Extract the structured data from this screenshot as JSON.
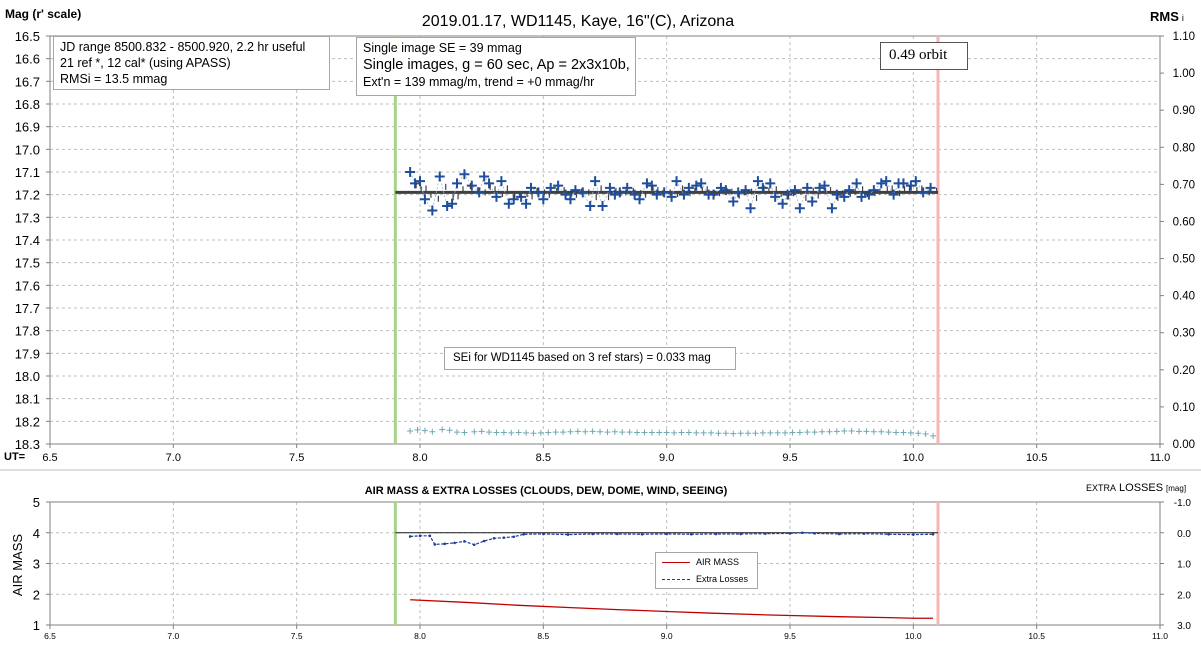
{
  "title": "2019.01.17, WD1145, Kaye, 16\"(C), Arizona",
  "annotations": {
    "jd_box": [
      "JD range 8500.832 - 8500.920, 2.2 hr useful",
      "21 ref *, 12 cal* (using APASS)",
      "RMSi = 13.5 mmag"
    ],
    "se_box": [
      "Single image SE = 39 mmag",
      "Single images, g = 60 sec, Ap = 2x3x10b,",
      "Ext'n = 139 mmag/m, trend = +0 mmag/hr"
    ],
    "orbit": "0.49 orbit",
    "sei": "SEi for WD1145 based on 3 ref stars) = 0.033 mag"
  },
  "colors": {
    "data_marker": "#1f4e9c",
    "rms_marker": "#6fa8b5",
    "ingress_line": "#a9d18e",
    "egress_line": "#f4b6b6",
    "model_line": "#404040",
    "air_mass": "#c00000",
    "extra_losses": "#1f3d99",
    "grid": "#bfbfbf"
  },
  "chart_data": [
    {
      "type": "scatter",
      "ylabel": "Mag (r' scale)",
      "ylabel_right": "RMS",
      "ylabel_right_sub": "i",
      "x_prefix": "UT=",
      "xlim": [
        6.5,
        11.0
      ],
      "ylim": [
        18.3,
        16.5
      ],
      "ylim_right": [
        0.0,
        1.1
      ],
      "xticks": [
        "6.5",
        "7.0",
        "7.5",
        "8.0",
        "8.5",
        "9.0",
        "9.5",
        "10.0",
        "10.5",
        "11.0"
      ],
      "yticks": [
        "16.5",
        "16.6",
        "16.7",
        "16.8",
        "16.9",
        "17.0",
        "17.1",
        "17.2",
        "17.3",
        "17.4",
        "17.5",
        "17.6",
        "17.7",
        "17.8",
        "17.9",
        "18.0",
        "18.1",
        "18.2",
        "18.3"
      ],
      "yticks_right": [
        "1.10",
        "1.00",
        "0.90",
        "0.80",
        "0.70",
        "0.60",
        "0.50",
        "0.40",
        "0.30",
        "0.20",
        "0.10",
        "0.00"
      ],
      "grid": true,
      "vlines": [
        7.9,
        10.1
      ],
      "model": {
        "x": [
          7.9,
          10.1
        ],
        "y": [
          17.19,
          17.19
        ]
      },
      "series": [
        {
          "x": [
            7.96,
            7.98,
            8.0,
            8.02,
            8.05,
            8.08,
            8.11,
            8.13,
            8.15,
            8.18,
            8.21,
            8.24,
            8.26,
            8.28,
            8.31,
            8.33,
            8.36,
            8.38,
            8.41,
            8.43,
            8.45,
            8.48,
            8.5,
            8.53,
            8.56,
            8.59,
            8.61,
            8.63,
            8.66,
            8.69,
            8.71,
            8.74,
            8.77,
            8.79,
            8.81,
            8.84,
            8.87,
            8.89,
            8.92,
            8.94,
            8.96,
            8.99,
            9.02,
            9.04,
            9.07,
            9.09,
            9.12,
            9.14,
            9.17,
            9.19,
            9.22,
            9.24,
            9.27,
            9.29,
            9.32,
            9.34,
            9.37,
            9.39,
            9.42,
            9.44,
            9.47,
            9.49,
            9.52,
            9.54,
            9.57,
            9.59,
            9.62,
            9.64,
            9.67,
            9.69,
            9.72,
            9.74,
            9.77,
            9.79,
            9.82,
            9.84,
            9.87,
            9.89,
            9.92,
            9.94,
            9.96,
            9.99,
            10.01,
            10.04,
            10.07
          ],
          "y": [
            17.1,
            17.15,
            17.14,
            17.22,
            17.27,
            17.12,
            17.25,
            17.24,
            17.15,
            17.11,
            17.16,
            17.19,
            17.12,
            17.15,
            17.21,
            17.14,
            17.24,
            17.22,
            17.21,
            17.24,
            17.17,
            17.19,
            17.22,
            17.17,
            17.16,
            17.2,
            17.22,
            17.18,
            17.19,
            17.25,
            17.14,
            17.25,
            17.17,
            17.2,
            17.19,
            17.17,
            17.2,
            17.22,
            17.15,
            17.16,
            17.2,
            17.19,
            17.21,
            17.14,
            17.2,
            17.17,
            17.16,
            17.15,
            17.2,
            17.2,
            17.17,
            17.18,
            17.23,
            17.19,
            17.18,
            17.26,
            17.14,
            17.17,
            17.15,
            17.21,
            17.24,
            17.2,
            17.18,
            17.26,
            17.17,
            17.23,
            17.17,
            17.16,
            17.26,
            17.2,
            17.21,
            17.18,
            17.15,
            17.21,
            17.2,
            17.18,
            17.15,
            17.14,
            17.2,
            17.15,
            17.15,
            17.16,
            17.14,
            17.19,
            17.17
          ]
        },
        {
          "x": [
            7.96,
            7.99,
            8.02,
            8.05,
            8.09,
            8.12,
            8.15,
            8.18,
            8.22,
            8.25,
            8.28,
            8.31,
            8.34,
            8.37,
            8.4,
            8.43,
            8.46,
            8.49,
            8.52,
            8.55,
            8.58,
            8.61,
            8.64,
            8.67,
            8.7,
            8.73,
            8.76,
            8.79,
            8.82,
            8.85,
            8.88,
            8.91,
            8.94,
            8.97,
            9.0,
            9.03,
            9.06,
            9.09,
            9.12,
            9.15,
            9.18,
            9.21,
            9.24,
            9.27,
            9.3,
            9.33,
            9.36,
            9.39,
            9.42,
            9.45,
            9.48,
            9.51,
            9.54,
            9.57,
            9.6,
            9.63,
            9.66,
            9.69,
            9.72,
            9.75,
            9.78,
            9.81,
            9.84,
            9.87,
            9.9,
            9.93,
            9.96,
            9.99,
            10.02,
            10.05,
            10.08
          ],
          "y": [
            0.035,
            0.038,
            0.036,
            0.033,
            0.039,
            0.037,
            0.032,
            0.031,
            0.033,
            0.034,
            0.032,
            0.031,
            0.031,
            0.03,
            0.031,
            0.03,
            0.029,
            0.03,
            0.031,
            0.032,
            0.032,
            0.033,
            0.034,
            0.033,
            0.034,
            0.033,
            0.032,
            0.033,
            0.032,
            0.032,
            0.031,
            0.031,
            0.031,
            0.031,
            0.031,
            0.03,
            0.031,
            0.031,
            0.03,
            0.03,
            0.03,
            0.029,
            0.029,
            0.028,
            0.029,
            0.029,
            0.029,
            0.03,
            0.03,
            0.03,
            0.03,
            0.031,
            0.031,
            0.032,
            0.032,
            0.033,
            0.033,
            0.034,
            0.035,
            0.035,
            0.034,
            0.034,
            0.033,
            0.033,
            0.032,
            0.031,
            0.031,
            0.03,
            0.029,
            0.027,
            0.022
          ]
        }
      ]
    },
    {
      "type": "line",
      "title": "AIR MASS & EXTRA LOSSES (CLOUDS, DEW, DOME, WIND, SEEING)",
      "ylabel": "AIR MASS",
      "ylabel_right_small": "EXTRA",
      "ylabel_right_big": "LOSSES",
      "ylabel_right_unit": "[mag]",
      "xlim": [
        6.5,
        11.0
      ],
      "ylim": [
        1,
        5
      ],
      "ylim_right": [
        3.0,
        -1.0
      ],
      "xticks": [
        "6.5",
        "7.0",
        "7.5",
        "8.0",
        "8.5",
        "9.0",
        "9.5",
        "10.0",
        "10.5",
        "11.0"
      ],
      "yticks": [
        "1",
        "2",
        "3",
        "4",
        "5"
      ],
      "yticks_right": [
        "-1.0",
        "0.0",
        "1.0",
        "2.0",
        "3.0"
      ],
      "grid": true,
      "vlines": [
        7.9,
        10.1
      ],
      "reference_line": {
        "x": [
          7.9,
          10.1
        ],
        "y": [
          0.0,
          0.0
        ]
      },
      "series": [
        {
          "name": "AIR MASS",
          "x": [
            7.96,
            8.2,
            8.4,
            8.6,
            8.8,
            9.0,
            9.2,
            9.4,
            9.5,
            9.7,
            9.9,
            10.0,
            10.08
          ],
          "y": [
            1.82,
            1.73,
            1.64,
            1.57,
            1.5,
            1.44,
            1.38,
            1.33,
            1.31,
            1.27,
            1.24,
            1.22,
            1.22
          ]
        },
        {
          "name": "Extra Losses",
          "x": [
            7.96,
            8.0,
            8.04,
            8.06,
            8.1,
            8.14,
            8.18,
            8.22,
            8.26,
            8.3,
            8.34,
            8.38,
            8.42,
            8.5,
            8.6,
            8.7,
            8.8,
            8.9,
            9.0,
            9.1,
            9.2,
            9.3,
            9.4,
            9.5,
            9.55,
            9.6,
            9.7,
            9.8,
            9.9,
            10.0,
            10.08
          ],
          "y": [
            0.12,
            0.1,
            0.1,
            0.38,
            0.36,
            0.33,
            0.28,
            0.39,
            0.27,
            0.18,
            0.16,
            0.13,
            0.05,
            0.04,
            0.06,
            0.04,
            0.04,
            0.05,
            0.04,
            0.05,
            0.04,
            0.04,
            0.03,
            0.02,
            0.0,
            0.02,
            0.04,
            0.03,
            0.05,
            0.06,
            0.05
          ]
        }
      ]
    }
  ]
}
